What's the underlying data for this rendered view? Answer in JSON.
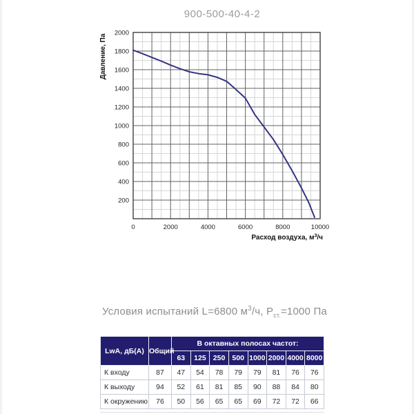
{
  "page": {
    "title": "900-500-40-4-2"
  },
  "chart_data": {
    "type": "line",
    "title": "900-500-40-4-2",
    "xlabel": "Расход воздуха, м³/ч",
    "xlabel_parts": {
      "main": "Расход воздуха, м",
      "sup": "3",
      "tail": "/ч"
    },
    "ylabel": "Давление, Па",
    "xlim": [
      0,
      10000
    ],
    "ylim": [
      0,
      2000
    ],
    "x_major_step": 1000,
    "x_minor_step": 500,
    "y_major_step": 200,
    "y_minor_step": 100,
    "x_ticks": [
      0,
      2000,
      4000,
      6000,
      8000,
      10000
    ],
    "y_ticks": [
      200,
      400,
      600,
      800,
      1000,
      1200,
      1400,
      1600,
      1800,
      2000
    ],
    "grid": true,
    "legend": "none",
    "series": [
      {
        "name": "pressure-curve",
        "points": [
          [
            0,
            1810
          ],
          [
            500,
            1772
          ],
          [
            1000,
            1732
          ],
          [
            1500,
            1692
          ],
          [
            2000,
            1650
          ],
          [
            2500,
            1610
          ],
          [
            3000,
            1578
          ],
          [
            3500,
            1558
          ],
          [
            4000,
            1545
          ],
          [
            4500,
            1518
          ],
          [
            5000,
            1475
          ],
          [
            5400,
            1405
          ],
          [
            6000,
            1295
          ],
          [
            6500,
            1120
          ],
          [
            7000,
            985
          ],
          [
            7500,
            850
          ],
          [
            8000,
            690
          ],
          [
            8500,
            515
          ],
          [
            9000,
            330
          ],
          [
            9400,
            170
          ],
          [
            9700,
            15
          ]
        ]
      }
    ]
  },
  "conditions": {
    "part1": "Условия испытаний L=6800 м",
    "sup": "3",
    "part2": "/ч, Р",
    "sub": "ст.",
    "part3": "=1000 Па"
  },
  "table": {
    "col1_header": "LwA, дБ(A)",
    "col2_header": "Общий",
    "band_header": "В октавных полосах частот:",
    "frequencies": [
      "63",
      "125",
      "250",
      "500",
      "1000",
      "2000",
      "4000",
      "8000"
    ],
    "rows": [
      {
        "label": "К входу",
        "total": "87",
        "values": [
          "47",
          "54",
          "78",
          "79",
          "79",
          "81",
          "76",
          "76"
        ]
      },
      {
        "label": "К выходу",
        "total": "94",
        "values": [
          "52",
          "61",
          "81",
          "85",
          "90",
          "88",
          "84",
          "80"
        ]
      },
      {
        "label": "К окружению",
        "total": "76",
        "values": [
          "50",
          "56",
          "65",
          "65",
          "69",
          "72",
          "72",
          "66"
        ]
      }
    ]
  },
  "colors": {
    "curve": "#333382",
    "grid_major": "#616161",
    "grid_minor": "#d6d6d6",
    "plot_border": "#3f3f3f",
    "tick_text": "#1f1f1f",
    "axis_title_text": "#111111",
    "table_header_bg": "#221d6e",
    "table_header_text": "#ffffff",
    "title_gray": "#9b9b9b",
    "conditions_gray": "#8d8d8d"
  }
}
